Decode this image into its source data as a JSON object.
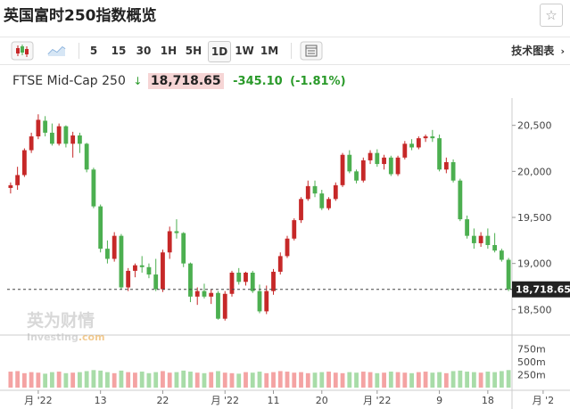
{
  "header": {
    "title": "英国富时250指数概览",
    "star_icon": "star-icon"
  },
  "toolbar": {
    "chart_type_icons": [
      "candlestick-icon",
      "area-chart-icon"
    ],
    "intervals": [
      "5",
      "15",
      "30",
      "1H",
      "5H",
      "1D",
      "1W",
      "1M"
    ],
    "active_interval": "1D",
    "settings_icon": "layout-icon",
    "tech_chart_label": "技术图表",
    "tech_chart_icon": "chevron-right-icon"
  },
  "quote": {
    "name": "FTSE Mid-Cap 250",
    "arrow": "↓",
    "price": "18,718.65",
    "change": "-345.10",
    "change_pct": "(-1.81%)"
  },
  "watermark": {
    "cn": "英为财情",
    "en": "Investing",
    "suffix": ".com"
  },
  "colors": {
    "up": "#c62828",
    "down": "#4caf50",
    "vol_up": "#f4a3a3",
    "vol_down": "#a8dca8",
    "price_tag": "#222222"
  },
  "chart_data": {
    "type": "candlestick",
    "y_ticks": [
      "20,500",
      "20,000",
      "19,500",
      "19,000",
      "18,500"
    ],
    "y_tick_values": [
      20500,
      20000,
      19500,
      19000,
      18500
    ],
    "ylim": [
      18300,
      20700
    ],
    "current_price_label": "18,718.65",
    "current_price": 18718.65,
    "volume_ticks": [
      "750m",
      "500m",
      "250m"
    ],
    "volume_tick_values": [
      750,
      500,
      250
    ],
    "volume_max": 950,
    "x_labels": [
      "月 '22",
      "13",
      "22",
      "月 '22",
      "11",
      "20",
      "月 '22",
      "9",
      "18",
      "月 '2"
    ],
    "x_label_index": [
      4,
      13,
      22,
      31,
      38,
      45,
      53,
      62,
      69,
      77
    ],
    "candles": [
      [
        19820,
        19880,
        19760,
        19850
      ],
      [
        19850,
        20050,
        19800,
        19960
      ],
      [
        19960,
        20250,
        19940,
        20230
      ],
      [
        20230,
        20420,
        20200,
        20380
      ],
      [
        20380,
        20620,
        20350,
        20560
      ],
      [
        20550,
        20600,
        20380,
        20420
      ],
      [
        20420,
        20520,
        20280,
        20300
      ],
      [
        20300,
        20520,
        20280,
        20490
      ],
      [
        20490,
        20500,
        20260,
        20300
      ],
      [
        20300,
        20430,
        20150,
        20390
      ],
      [
        20390,
        20420,
        20200,
        20300
      ],
      [
        20300,
        20310,
        19990,
        20020
      ],
      [
        20020,
        20040,
        19600,
        19620
      ],
      [
        19620,
        19640,
        19120,
        19160
      ],
      [
        19160,
        19250,
        19000,
        19050
      ],
      [
        19050,
        19340,
        19020,
        19300
      ],
      [
        19300,
        19320,
        18720,
        18740
      ],
      [
        18740,
        18950,
        18700,
        18920
      ],
      [
        18920,
        19000,
        18850,
        18980
      ],
      [
        18980,
        19080,
        18900,
        18960
      ],
      [
        18960,
        19000,
        18840,
        18880
      ],
      [
        18880,
        19050,
        18700,
        18720
      ],
      [
        18720,
        19150,
        18690,
        19120
      ],
      [
        19120,
        19400,
        19050,
        19350
      ],
      [
        19350,
        19480,
        19270,
        19330
      ],
      [
        19330,
        19340,
        18960,
        19000
      ],
      [
        19000,
        19010,
        18580,
        18640
      ],
      [
        18640,
        18740,
        18550,
        18700
      ],
      [
        18700,
        18780,
        18620,
        18640
      ],
      [
        18640,
        18720,
        18560,
        18680
      ],
      [
        18680,
        18700,
        18390,
        18400
      ],
      [
        18400,
        18700,
        18380,
        18670
      ],
      [
        18670,
        18920,
        18640,
        18900
      ],
      [
        18900,
        18950,
        18770,
        18800
      ],
      [
        18800,
        18910,
        18760,
        18900
      ],
      [
        18900,
        18920,
        18680,
        18700
      ],
      [
        18700,
        18770,
        18460,
        18480
      ],
      [
        18480,
        18760,
        18450,
        18700
      ],
      [
        18700,
        18940,
        18660,
        18910
      ],
      [
        18910,
        19120,
        18880,
        19080
      ],
      [
        19080,
        19300,
        19060,
        19270
      ],
      [
        19270,
        19490,
        19250,
        19470
      ],
      [
        19470,
        19720,
        19440,
        19700
      ],
      [
        19700,
        19900,
        19680,
        19840
      ],
      [
        19840,
        19900,
        19720,
        19760
      ],
      [
        19760,
        19800,
        19580,
        19600
      ],
      [
        19600,
        19720,
        19580,
        19700
      ],
      [
        19700,
        19880,
        19680,
        19850
      ],
      [
        19850,
        20200,
        19830,
        20180
      ],
      [
        20180,
        20230,
        19980,
        20000
      ],
      [
        20000,
        20020,
        19870,
        19900
      ],
      [
        19900,
        20150,
        19880,
        20120
      ],
      [
        20120,
        20230,
        20080,
        20200
      ],
      [
        20200,
        20240,
        20050,
        20080
      ],
      [
        20080,
        20180,
        20020,
        20150
      ],
      [
        20150,
        20170,
        19950,
        19970
      ],
      [
        19970,
        20170,
        19950,
        20150
      ],
      [
        20150,
        20330,
        20130,
        20300
      ],
      [
        20300,
        20350,
        20230,
        20260
      ],
      [
        20260,
        20380,
        20240,
        20360
      ],
      [
        20360,
        20400,
        20320,
        20380
      ],
      [
        20380,
        20450,
        20320,
        20360
      ],
      [
        20360,
        20400,
        20000,
        20020
      ],
      [
        20020,
        20150,
        19980,
        20100
      ],
      [
        20100,
        20130,
        19880,
        19900
      ],
      [
        19900,
        19920,
        19460,
        19480
      ],
      [
        19480,
        19520,
        19270,
        19300
      ],
      [
        19300,
        19380,
        19160,
        19220
      ],
      [
        19220,
        19340,
        19180,
        19300
      ],
      [
        19300,
        19380,
        19160,
        19200
      ],
      [
        19200,
        19330,
        19120,
        19140
      ],
      [
        19140,
        19160,
        19020,
        19040
      ],
      [
        19040,
        19060,
        18700,
        18719
      ]
    ],
    "volumes": [
      310,
      320,
      280,
      300,
      290,
      270,
      300,
      310,
      280,
      290,
      300,
      320,
      340,
      330,
      300,
      280,
      330,
      300,
      290,
      310,
      280,
      300,
      320,
      290,
      300,
      330,
      310,
      290,
      280,
      300,
      320,
      290,
      280,
      270,
      300,
      290,
      310,
      280,
      300,
      320,
      310,
      290,
      300,
      280,
      290,
      300,
      310,
      290,
      280,
      300,
      290,
      310,
      300,
      280,
      290,
      310,
      300,
      290,
      280,
      300,
      310,
      290,
      300,
      280,
      320,
      330,
      310,
      300,
      290,
      310,
      300,
      320,
      340
    ]
  }
}
